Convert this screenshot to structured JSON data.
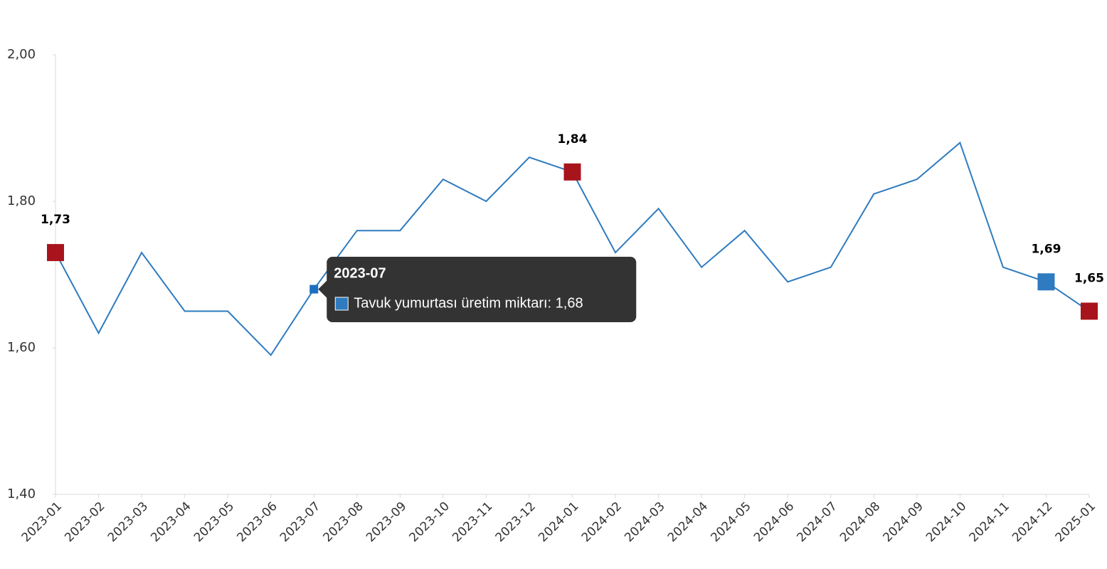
{
  "chart_data": {
    "type": "line",
    "categories": [
      "2023-01",
      "2023-02",
      "2023-03",
      "2023-04",
      "2023-05",
      "2023-06",
      "2023-07",
      "2023-08",
      "2023-09",
      "2023-10",
      "2023-11",
      "2023-12",
      "2024-01",
      "2024-02",
      "2024-03",
      "2024-04",
      "2024-05",
      "2024-06",
      "2024-07",
      "2024-08",
      "2024-09",
      "2024-10",
      "2024-11",
      "2024-12",
      "2025-01"
    ],
    "series": [
      {
        "name": "Tavuk yumurtası üretim miktarı",
        "color": "#2e7bbf",
        "values": [
          1.73,
          1.62,
          1.73,
          1.65,
          1.65,
          1.59,
          1.68,
          1.76,
          1.76,
          1.83,
          1.8,
          1.86,
          1.84,
          1.73,
          1.79,
          1.71,
          1.76,
          1.69,
          1.71,
          1.81,
          1.83,
          1.88,
          1.71,
          1.69,
          1.65
        ],
        "value_labels": [
          "1,73",
          null,
          null,
          null,
          null,
          null,
          null,
          null,
          null,
          null,
          null,
          null,
          "1,84",
          null,
          null,
          null,
          null,
          null,
          null,
          null,
          null,
          null,
          null,
          "1,69",
          "1,65"
        ],
        "markers": [
          {
            "index": 0,
            "color": "#a8141c"
          },
          {
            "index": 12,
            "color": "#a8141c"
          },
          {
            "index": 23,
            "color": "#2e7bbf"
          },
          {
            "index": 24,
            "color": "#a8141c"
          }
        ]
      }
    ],
    "ylim": [
      1.4,
      2.0
    ],
    "yticks": [
      {
        "value": 1.4,
        "label": "1,40"
      },
      {
        "value": 1.6,
        "label": "1,60"
      },
      {
        "value": 1.8,
        "label": "1,80"
      },
      {
        "value": 2.0,
        "label": "2,00"
      }
    ],
    "tooltip": {
      "index": 6,
      "title": "2023-07",
      "text": "Tavuk yumurtası üretim miktarı: 1,68"
    }
  }
}
